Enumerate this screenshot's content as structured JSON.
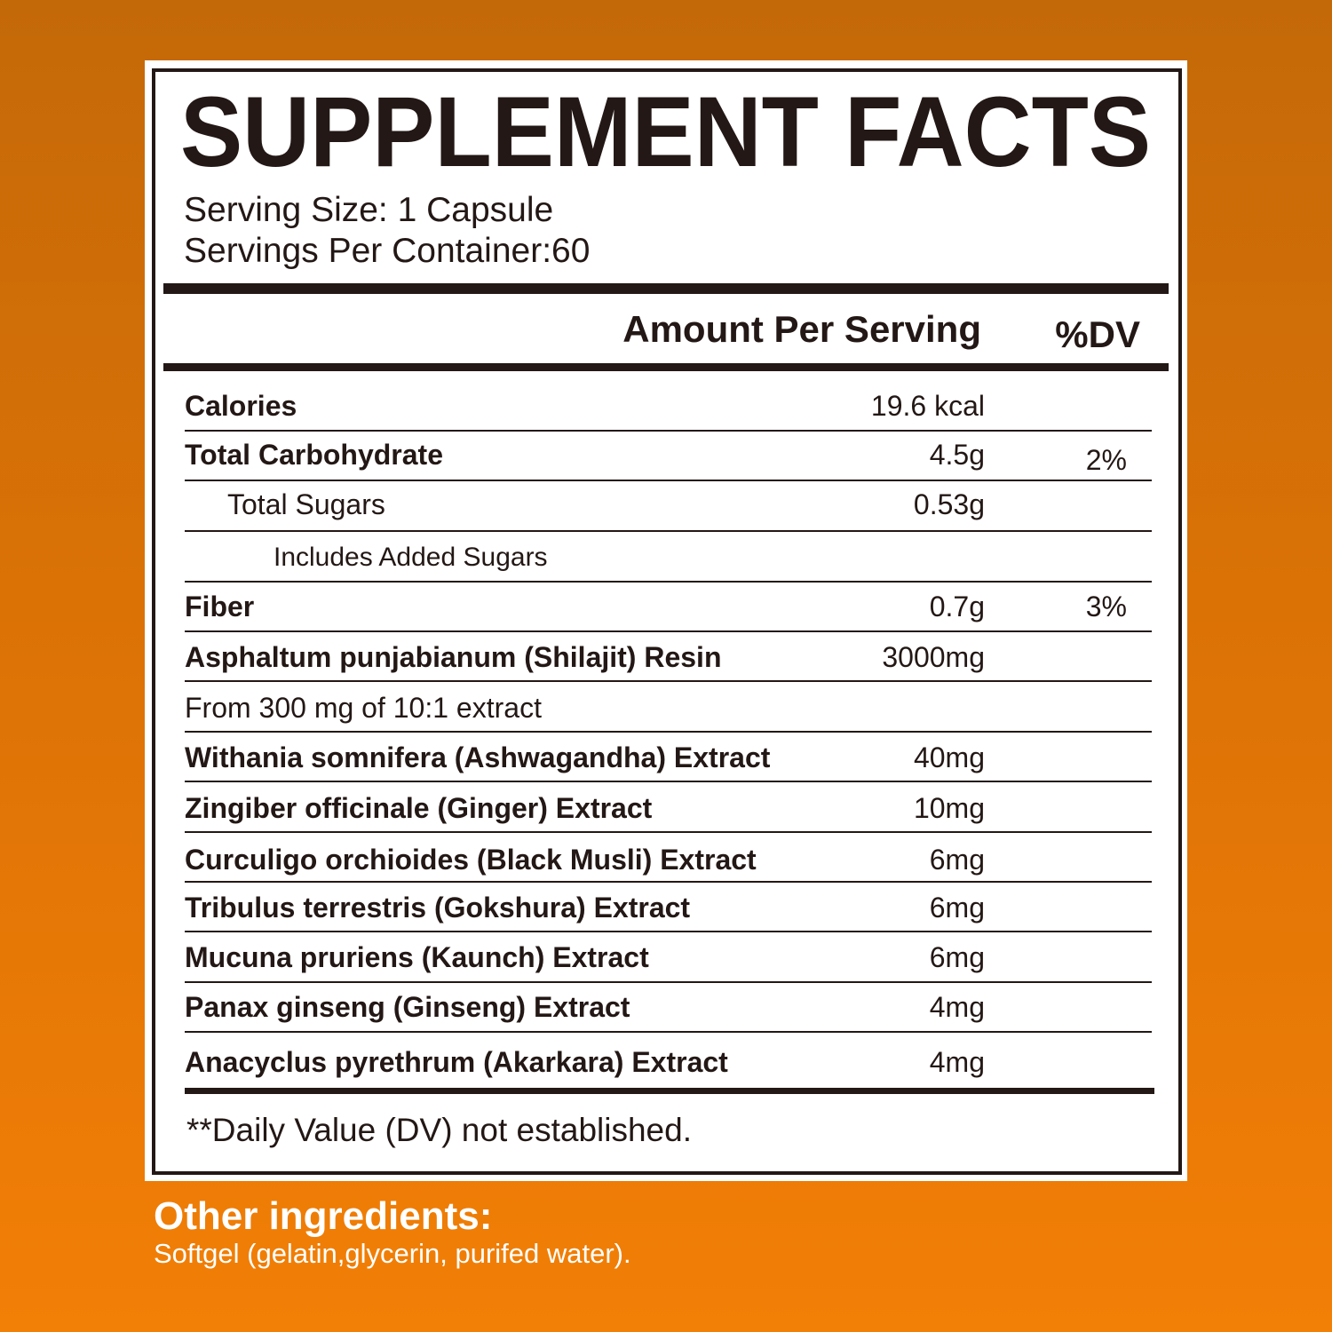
{
  "header": {
    "title": "SUPPLEMENT FACTS",
    "serving_size": "Serving Size: 1 Capsule",
    "servings_per_container": "Servings Per Container:60"
  },
  "table": {
    "amount_header": "Amount Per Serving",
    "dv_header": "%DV",
    "rows": [
      {
        "name": "Calories",
        "amount": "19.6 kcal"
      },
      {
        "name": "Total Carbohydrate",
        "amount": "4.5g",
        "dv": "2%"
      },
      {
        "name": "Total Sugars",
        "amount": "0.53g"
      },
      {
        "name": "Includes Added Sugars"
      },
      {
        "name": "Fiber",
        "amount": "0.7g",
        "dv": "3%"
      },
      {
        "name": "Asphaltum punjabianum (Shilajit) Resin",
        "amount": "3000mg"
      },
      {
        "name": "From 300 mg of 10:1 extract"
      },
      {
        "name": "Withania somnifera (Ashwagandha) Extract",
        "amount": "40mg"
      },
      {
        "name": "Zingiber officinale (Ginger) Extract",
        "amount": "10mg"
      },
      {
        "name": "Curculigo orchioides (Black Musli) Extract",
        "amount": "6mg"
      },
      {
        "name": "Tribulus terrestris (Gokshura) Extract",
        "amount": "6mg"
      },
      {
        "name": "Mucuna pruriens (Kaunch) Extract",
        "amount": "6mg"
      },
      {
        "name": "Panax ginseng (Ginseng) Extract",
        "amount": "4mg"
      },
      {
        "name": "Anacyclus pyrethrum (Akarkara) Extract",
        "amount": "4mg"
      }
    ],
    "footnote": "**Daily Value (DV) not established."
  },
  "other_ingredients": {
    "title": "Other ingredients:",
    "text": "Softgel (gelatin,glycerin, purifed water)."
  }
}
